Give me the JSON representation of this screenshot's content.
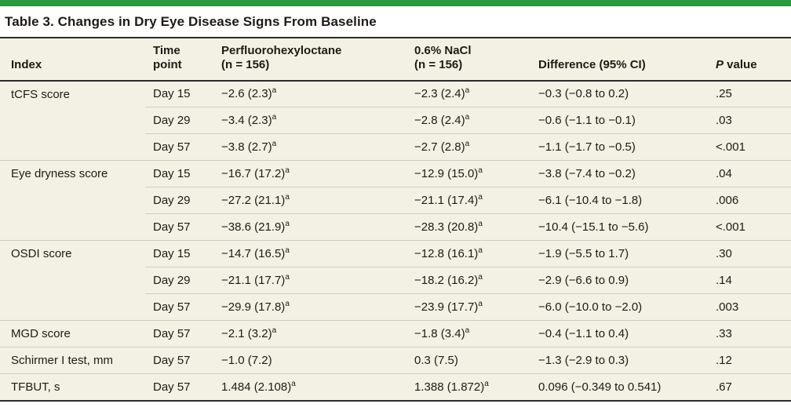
{
  "title": "Table 3. Changes in Dry Eye Disease Signs From Baseline",
  "colors": {
    "accent_green": "#2e9a3f",
    "table_background": "#f3f0e4",
    "row_line": "#cfccc0",
    "rule_dark": "#2b2b2b",
    "text": "#1e1b16"
  },
  "table": {
    "header": {
      "index": "Index",
      "time_point": [
        "Time",
        "point"
      ],
      "pfho": [
        "Perfluorohexyloctane",
        "(n = 156)"
      ],
      "nacl": [
        "0.6% NaCl",
        "(n = 156)"
      ],
      "difference": "Difference (95% CI)",
      "p_value": {
        "italic": "P",
        "rest": " value"
      }
    },
    "footnote_marker": "a",
    "groups": [
      {
        "index": "tCFS score",
        "rows": [
          {
            "time": "Day 15",
            "pfho": "−2.6 (2.3)",
            "pfho_sup": true,
            "nacl": "−2.3 (2.4)",
            "nacl_sup": true,
            "diff": "−0.3 (−0.8 to 0.2)",
            "p": ".25"
          },
          {
            "time": "Day 29",
            "pfho": "−3.4 (2.3)",
            "pfho_sup": true,
            "nacl": "−2.8 (2.4)",
            "nacl_sup": true,
            "diff": "−0.6 (−1.1 to −0.1)",
            "p": ".03"
          },
          {
            "time": "Day 57",
            "pfho": "−3.8 (2.7)",
            "pfho_sup": true,
            "nacl": "−2.7 (2.8)",
            "nacl_sup": true,
            "diff": "−1.1 (−1.7 to −0.5)",
            "p": "<.001"
          }
        ]
      },
      {
        "index": "Eye dryness score",
        "rows": [
          {
            "time": "Day 15",
            "pfho": "−16.7 (17.2)",
            "pfho_sup": true,
            "nacl": "−12.9 (15.0)",
            "nacl_sup": true,
            "diff": "−3.8 (−7.4 to −0.2)",
            "p": ".04"
          },
          {
            "time": "Day 29",
            "pfho": "−27.2 (21.1)",
            "pfho_sup": true,
            "nacl": "−21.1 (17.4)",
            "nacl_sup": true,
            "diff": "−6.1 (−10.4 to −1.8)",
            "p": ".006"
          },
          {
            "time": "Day 57",
            "pfho": "−38.6 (21.9)",
            "pfho_sup": true,
            "nacl": "−28.3 (20.8)",
            "nacl_sup": true,
            "diff": "−10.4 (−15.1 to −5.6)",
            "p": "<.001"
          }
        ]
      },
      {
        "index": "OSDI score",
        "rows": [
          {
            "time": "Day 15",
            "pfho": "−14.7 (16.5)",
            "pfho_sup": true,
            "nacl": "−12.8 (16.1)",
            "nacl_sup": true,
            "diff": "−1.9 (−5.5 to 1.7)",
            "p": ".30"
          },
          {
            "time": "Day 29",
            "pfho": "−21.1 (17.7)",
            "pfho_sup": true,
            "nacl": "−18.2 (16.2)",
            "nacl_sup": true,
            "diff": "−2.9 (−6.6 to 0.9)",
            "p": ".14"
          },
          {
            "time": "Day 57",
            "pfho": "−29.9 (17.8)",
            "pfho_sup": true,
            "nacl": "−23.9 (17.7)",
            "nacl_sup": true,
            "diff": "−6.0 (−10.0 to −2.0)",
            "p": ".003"
          }
        ]
      },
      {
        "index": "MGD score",
        "rows": [
          {
            "time": "Day 57",
            "pfho": "−2.1 (3.2)",
            "pfho_sup": true,
            "nacl": "−1.8 (3.4)",
            "nacl_sup": true,
            "diff": "−0.4 (−1.1 to 0.4)",
            "p": ".33"
          }
        ]
      },
      {
        "index": "Schirmer I test, mm",
        "rows": [
          {
            "time": "Day 57",
            "pfho": "−1.0 (7.2)",
            "pfho_sup": false,
            "nacl": "0.3 (7.5)",
            "nacl_sup": false,
            "diff": "−1.3 (−2.9 to 0.3)",
            "p": ".12"
          }
        ]
      },
      {
        "index": "TFBUT, s",
        "rows": [
          {
            "time": "Day 57",
            "pfho": "1.484 (2.108)",
            "pfho_sup": true,
            "nacl": "1.388 (1.872)",
            "nacl_sup": true,
            "diff": "0.096 (−0.349 to 0.541)",
            "p": ".67"
          }
        ]
      }
    ]
  }
}
